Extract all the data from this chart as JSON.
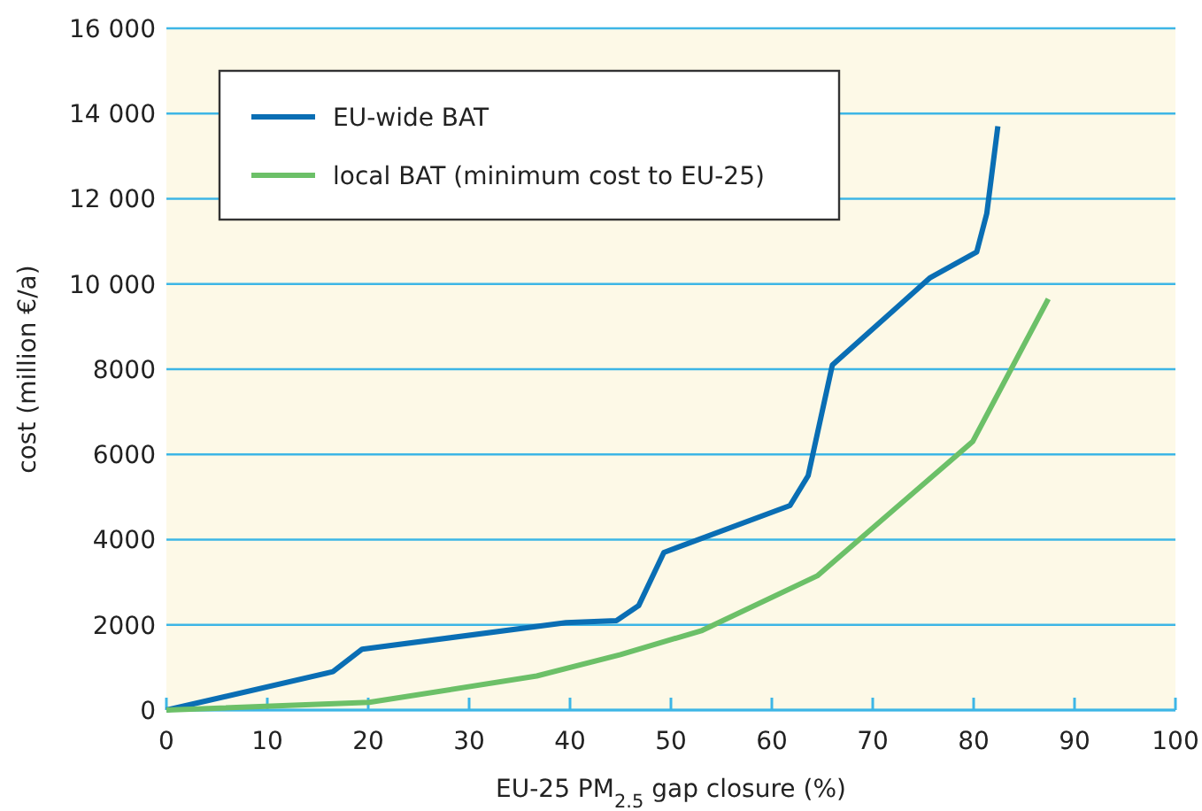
{
  "chart_data": {
    "type": "line",
    "xlabel": "EU-25 PM$_{2.5}$ gap closure (%)",
    "ylabel": "cost (million €/a)",
    "xlim": [
      0,
      100
    ],
    "xticks": [
      0,
      10,
      20,
      30,
      40,
      50,
      60,
      70,
      80,
      90,
      100
    ],
    "ylim": [
      0,
      16000
    ],
    "yticks": [
      0,
      2000,
      4000,
      6000,
      8000,
      {
        "value": 10000,
        "label": "10 000"
      },
      {
        "value": 12000,
        "label": "12 000"
      },
      {
        "value": 14000,
        "label": "14 000"
      },
      {
        "value": 16000,
        "label": "16 000"
      }
    ],
    "grid": "y",
    "legend": "top left",
    "line_style": "solid",
    "marker": "none",
    "series": [
      {
        "name": "EU-wide BAT",
        "color": "#0a6eb4",
        "x": [
          0,
          16.5,
          19.4,
          39.6,
          44.6,
          46.8,
          49.3,
          61.8,
          63.6,
          66,
          75.7,
          80.3,
          81.3,
          82.4
        ],
        "values": [
          0,
          900,
          1430,
          2050,
          2100,
          2450,
          3700,
          4800,
          5500,
          8100,
          10150,
          10750,
          11650,
          13700
        ]
      },
      {
        "name": "local BAT (minimum cost to EU-25)",
        "color": "#6cc068",
        "x": [
          0,
          20.1,
          36.7,
          45,
          53.1,
          64.5,
          79.9,
          87.4
        ],
        "values": [
          0,
          180,
          800,
          1300,
          1870,
          3150,
          6300,
          9650
        ]
      }
    ]
  }
}
